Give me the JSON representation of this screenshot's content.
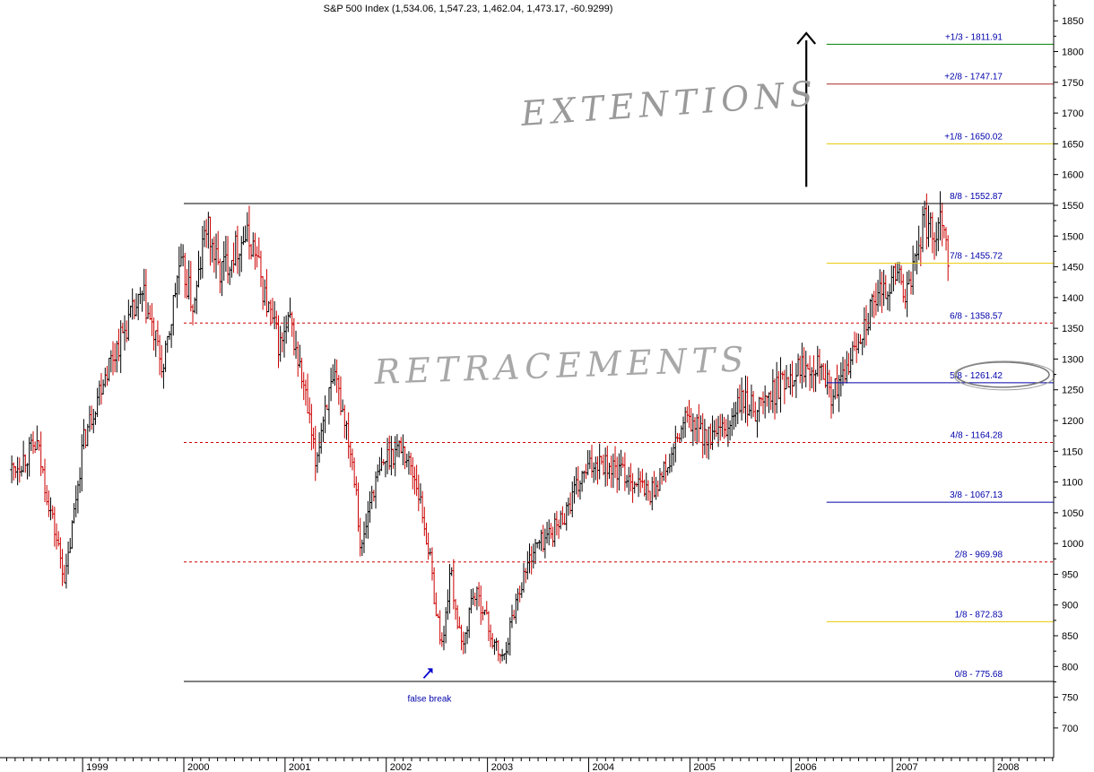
{
  "chart_data": {
    "type": "ohlc",
    "title": "S&P 500 Index (1,534.06, 1,547.23, 1,462.04, 1,473.17, -60.9299)",
    "x_ticks": [
      "1999",
      "2000",
      "2001",
      "2002",
      "2003",
      "2004",
      "2005",
      "2006",
      "2007",
      "2008"
    ],
    "x_range": [
      1998.3,
      2008.5
    ],
    "ylim": [
      662,
      1878
    ],
    "y_ticks": [
      700,
      750,
      800,
      850,
      900,
      950,
      1000,
      1050,
      1100,
      1150,
      1200,
      1250,
      1300,
      1350,
      1400,
      1450,
      1500,
      1550,
      1600,
      1650,
      1700,
      1750,
      1800,
      1850
    ],
    "grid": false,
    "up_color": "#000000",
    "down_color": "#cc0000",
    "levels": [
      {
        "label": "+1/3 - 1811.91",
        "value": 1811.91,
        "color": "#008000",
        "style": "solid",
        "x_start": 2006.35
      },
      {
        "label": "+2/8 - 1747.17",
        "value": 1747.17,
        "color": "#a52a2a",
        "style": "solid",
        "x_start": 2006.35
      },
      {
        "label": "+1/8 - 1650.02",
        "value": 1650.02,
        "color": "#e6c800",
        "style": "solid",
        "x_start": 2006.35
      },
      {
        "label": "8/8 - 1552.87",
        "value": 1552.87,
        "color": "#000000",
        "style": "solid",
        "x_start": 2000.0
      },
      {
        "label": "7/8 - 1455.72",
        "value": 1455.72,
        "color": "#e6c800",
        "style": "solid",
        "x_start": 2006.35
      },
      {
        "label": "6/8 - 1358.57",
        "value": 1358.57,
        "color": "#cc0000",
        "style": "dashed",
        "x_start": 2000.0
      },
      {
        "label": "5/8 - 1261.42",
        "value": 1261.42,
        "color": "#0000aa",
        "style": "solid",
        "x_start": 2006.35
      },
      {
        "label": "4/8 - 1164.28",
        "value": 1164.28,
        "color": "#cc0000",
        "style": "dashed",
        "x_start": 2000.0
      },
      {
        "label": "3/8 - 1067.13",
        "value": 1067.13,
        "color": "#0000aa",
        "style": "solid",
        "x_start": 2006.35
      },
      {
        "label": "2/8 - 969.98",
        "value": 969.98,
        "color": "#cc0000",
        "style": "dashed",
        "x_start": 2000.0
      },
      {
        "label": "1/8 - 872.83",
        "value": 872.83,
        "color": "#e6c800",
        "style": "solid",
        "x_start": 2006.35
      },
      {
        "label": "0/8 - 775.68",
        "value": 775.68,
        "color": "#000000",
        "style": "solid",
        "x_start": 2000.0
      }
    ],
    "annotations": {
      "extensions_text": "EXTENTIONS",
      "retracements_text": "RETRACEMENTS",
      "false_break_text": "false break",
      "extension_arrow": {
        "x": 2006.15,
        "from": 1580,
        "to": 1830
      },
      "false_break_arrow": {
        "x": 2002.6,
        "value": 800
      },
      "circled_level": "5/8 - 1261.42"
    },
    "price_path": [
      [
        1998.3,
        1120
      ],
      [
        1998.55,
        1160
      ],
      [
        1998.75,
        1000
      ],
      [
        1998.83,
        940
      ],
      [
        1999.0,
        1160
      ],
      [
        1999.2,
        1270
      ],
      [
        1999.45,
        1360
      ],
      [
        1999.6,
        1400
      ],
      [
        1999.8,
        1280
      ],
      [
        1999.95,
        1450
      ],
      [
        2000.0,
        1440
      ],
      [
        2000.1,
        1380
      ],
      [
        2000.22,
        1520
      ],
      [
        2000.35,
        1440
      ],
      [
        2000.6,
        1500
      ],
      [
        2000.7,
        1480
      ],
      [
        2000.8,
        1400
      ],
      [
        2000.95,
        1320
      ],
      [
        2001.05,
        1360
      ],
      [
        2001.2,
        1240
      ],
      [
        2001.3,
        1130
      ],
      [
        2001.4,
        1230
      ],
      [
        2001.5,
        1260
      ],
      [
        2001.6,
        1200
      ],
      [
        2001.7,
        1100
      ],
      [
        2001.75,
        980
      ],
      [
        2001.85,
        1080
      ],
      [
        2002.0,
        1140
      ],
      [
        2002.15,
        1160
      ],
      [
        2002.3,
        1100
      ],
      [
        2002.42,
        990
      ],
      [
        2002.5,
        880
      ],
      [
        2002.56,
        830
      ],
      [
        2002.63,
        960
      ],
      [
        2002.75,
        820
      ],
      [
        2002.85,
        920
      ],
      [
        2002.95,
        900
      ],
      [
        2003.05,
        840
      ],
      [
        2003.15,
        810
      ],
      [
        2003.3,
        920
      ],
      [
        2003.45,
        990
      ],
      [
        2003.7,
        1030
      ],
      [
        2003.95,
        1110
      ],
      [
        2004.1,
        1140
      ],
      [
        2004.25,
        1120
      ],
      [
        2004.4,
        1110
      ],
      [
        2004.6,
        1080
      ],
      [
        2004.8,
        1130
      ],
      [
        2004.95,
        1200
      ],
      [
        2005.05,
        1190
      ],
      [
        2005.2,
        1170
      ],
      [
        2005.35,
        1180
      ],
      [
        2005.5,
        1230
      ],
      [
        2005.65,
        1220
      ],
      [
        2005.8,
        1240
      ],
      [
        2005.95,
        1270
      ],
      [
        2006.1,
        1290
      ],
      [
        2006.3,
        1300
      ],
      [
        2006.38,
        1240
      ],
      [
        2006.5,
        1260
      ],
      [
        2006.7,
        1350
      ],
      [
        2006.9,
        1410
      ],
      [
        2007.05,
        1440
      ],
      [
        2007.15,
        1400
      ],
      [
        2007.3,
        1520
      ],
      [
        2007.42,
        1510
      ],
      [
        2007.5,
        1540
      ],
      [
        2007.55,
        1470
      ]
    ]
  }
}
